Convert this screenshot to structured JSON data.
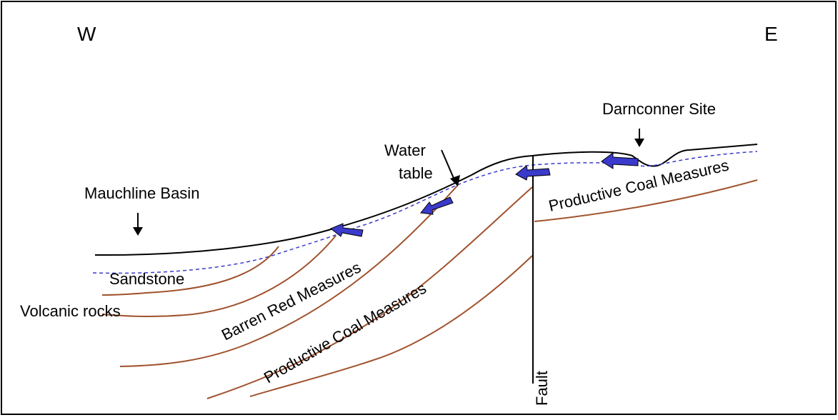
{
  "labels": {
    "west": "W",
    "east": "E",
    "site": "Darnconner Site",
    "water_table": [
      "Water",
      "table"
    ],
    "basin": "Mauchline Basin",
    "sandstone": "Sandstone",
    "volcanic": "Volcanic rocks",
    "barren": "Barren Red Measures",
    "coal_lower": "Productive Coal Measures",
    "coal_upper": "Productive Coal Measures",
    "fault": "Fault"
  }
}
